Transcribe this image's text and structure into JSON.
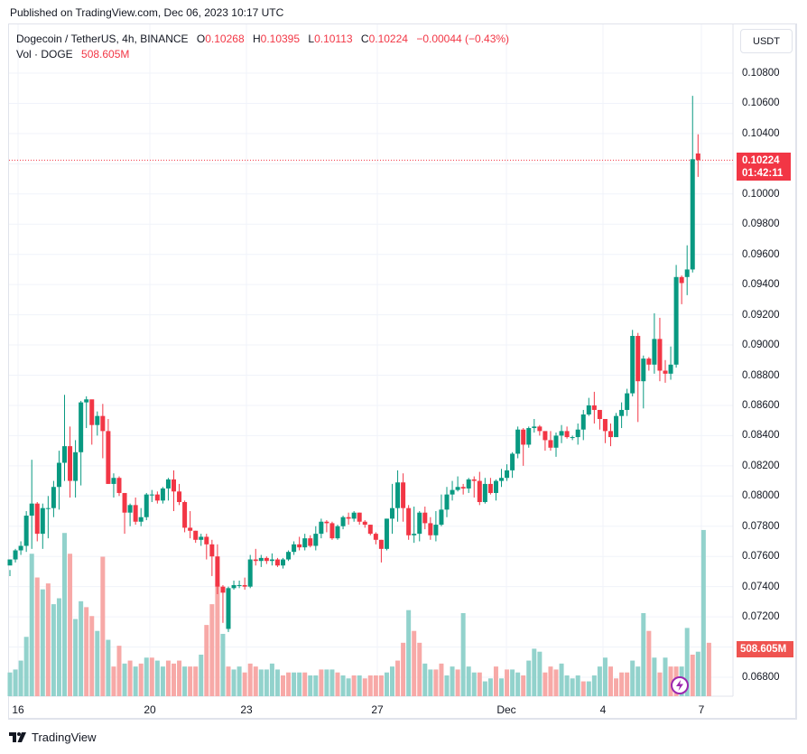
{
  "header": {
    "published": "Published on TradingView.com, Dec 06, 2023 10:17 UTC"
  },
  "legend": {
    "symbol": "Dogecoin / TetherUS, 4h, BINANCE",
    "o_label": "O",
    "o_value": "0.10268",
    "h_label": "H",
    "h_value": "0.10395",
    "l_label": "L",
    "l_value": "0.10113",
    "c_label": "C",
    "c_value": "0.10224",
    "change": "−0.00044 (−0.43%)",
    "vol_label": "Vol · DOGE",
    "vol_value": "508.605M"
  },
  "price_axis": {
    "unit_button": "USDT",
    "ticks": [
      "0.10800",
      "0.10600",
      "0.10400",
      "0.10000",
      "0.09800",
      "0.09600",
      "0.09400",
      "0.09200",
      "0.09000",
      "0.08800",
      "0.08600",
      "0.08400",
      "0.08200",
      "0.08000",
      "0.07800",
      "0.07600",
      "0.07400",
      "0.07200",
      "0.06800"
    ],
    "last_price": "0.10224",
    "countdown": "01:42:11",
    "volume_last": "508.605M"
  },
  "time_axis": {
    "ticks": [
      "16",
      "20",
      "23",
      "27",
      "Dec",
      "4",
      "7"
    ]
  },
  "footer": {
    "brand": "TradingView"
  },
  "colors": {
    "up": "#089981",
    "down": "#f23645",
    "vol_up": "#92d2cc",
    "vol_down": "#f7a9a7",
    "grid": "#f0f3fa",
    "accent_purple": "#9c27b0"
  },
  "chart_data": {
    "type": "candlestick",
    "title": "Dogecoin / TetherUS, 4h, BINANCE",
    "xlabel": "",
    "ylabel": "USDT",
    "ylim": [
      0.0675,
      0.1095
    ],
    "grid": true,
    "x_ticks": [
      "16",
      "20",
      "23",
      "27",
      "Dec",
      "4",
      "7"
    ],
    "y_ticks": [
      0.068,
      0.072,
      0.074,
      0.076,
      0.078,
      0.08,
      0.082,
      0.084,
      0.086,
      0.088,
      0.09,
      0.092,
      0.094,
      0.096,
      0.098,
      0.1,
      0.104,
      0.106,
      0.108
    ],
    "last": {
      "open": 0.10268,
      "high": 0.10395,
      "low": 0.10113,
      "close": 0.10224,
      "volume": "508.605M"
    },
    "candles": [
      [
        0.0754,
        0.0758,
        0.0751,
        0.0747
      ],
      [
        0.0758,
        0.0764,
        0.0765,
        0.0756
      ],
      [
        0.0764,
        0.0767,
        0.077,
        0.0761
      ],
      [
        0.0767,
        0.0787,
        0.079,
        0.0763
      ],
      [
        0.0787,
        0.0795,
        0.0824,
        0.0765
      ],
      [
        0.0795,
        0.0775,
        0.0796,
        0.077
      ],
      [
        0.0775,
        0.0792,
        0.0795,
        0.0765
      ],
      [
        0.0792,
        0.0792,
        0.08,
        0.0772
      ],
      [
        0.0792,
        0.0806,
        0.081,
        0.0786
      ],
      [
        0.0806,
        0.0822,
        0.083,
        0.0791
      ],
      [
        0.0822,
        0.0833,
        0.0867,
        0.081
      ],
      [
        0.0833,
        0.081,
        0.0846,
        0.0799
      ],
      [
        0.081,
        0.0829,
        0.0837,
        0.0799
      ],
      [
        0.0829,
        0.0862,
        0.0863,
        0.0807
      ],
      [
        0.0862,
        0.0864,
        0.0866,
        0.0845
      ],
      [
        0.0864,
        0.0847,
        0.0858,
        0.0834
      ],
      [
        0.0847,
        0.0853,
        0.0856,
        0.084
      ],
      [
        0.0853,
        0.0843,
        0.0861,
        0.0825
      ],
      [
        0.0843,
        0.0808,
        0.0851,
        0.0808
      ],
      [
        0.0808,
        0.0812,
        0.0815,
        0.0799
      ],
      [
        0.0812,
        0.0802,
        0.0813,
        0.08
      ],
      [
        0.0802,
        0.0789,
        0.0802,
        0.0775
      ],
      [
        0.0789,
        0.0794,
        0.0795,
        0.078
      ],
      [
        0.0794,
        0.0783,
        0.0799,
        0.0781
      ],
      [
        0.0783,
        0.0786,
        0.0792,
        0.078
      ],
      [
        0.0786,
        0.0801,
        0.0802,
        0.0784
      ],
      [
        0.0801,
        0.0801,
        0.0804,
        0.0796
      ],
      [
        0.0801,
        0.0797,
        0.0803,
        0.0795
      ],
      [
        0.0797,
        0.0805,
        0.0806,
        0.0795
      ],
      [
        0.0805,
        0.0811,
        0.0812,
        0.0797
      ],
      [
        0.0811,
        0.0803,
        0.0817,
        0.079
      ],
      [
        0.0803,
        0.0796,
        0.0808,
        0.0794
      ],
      [
        0.0796,
        0.0779,
        0.0797,
        0.0776
      ],
      [
        0.0779,
        0.0777,
        0.079,
        0.0772
      ],
      [
        0.0777,
        0.0771,
        0.0777,
        0.0769
      ],
      [
        0.0771,
        0.0773,
        0.0775,
        0.0767
      ],
      [
        0.0773,
        0.0768,
        0.0775,
        0.0758
      ],
      [
        0.0768,
        0.076,
        0.0771,
        0.0747
      ],
      [
        0.076,
        0.074,
        0.0768,
        0.0735
      ],
      [
        0.074,
        0.0736,
        0.0741,
        0.0716
      ],
      [
        0.0712,
        0.0739,
        0.074,
        0.071
      ],
      [
        0.0739,
        0.0741,
        0.0744,
        0.0738
      ],
      [
        0.0741,
        0.0741,
        0.0744,
        0.0739
      ],
      [
        0.0741,
        0.074,
        0.0746,
        0.0738
      ],
      [
        0.074,
        0.0758,
        0.0761,
        0.0739
      ],
      [
        0.0758,
        0.0757,
        0.0765,
        0.0754
      ],
      [
        0.0757,
        0.0759,
        0.0761,
        0.0753
      ],
      [
        0.0759,
        0.0757,
        0.076,
        0.0755
      ],
      [
        0.0757,
        0.0758,
        0.0762,
        0.0754
      ],
      [
        0.0758,
        0.0754,
        0.0759,
        0.0753
      ],
      [
        0.0754,
        0.0758,
        0.0759,
        0.0752
      ],
      [
        0.0758,
        0.0763,
        0.0764,
        0.0757
      ],
      [
        0.0763,
        0.0768,
        0.077,
        0.0761
      ],
      [
        0.0768,
        0.0766,
        0.0773,
        0.0764
      ],
      [
        0.0766,
        0.0772,
        0.0775,
        0.0764
      ],
      [
        0.0772,
        0.0767,
        0.0774,
        0.0766
      ],
      [
        0.0767,
        0.0775,
        0.078,
        0.0764
      ],
      [
        0.0775,
        0.0783,
        0.0785,
        0.0772
      ],
      [
        0.0783,
        0.0782,
        0.0784,
        0.0776
      ],
      [
        0.0782,
        0.0772,
        0.0783,
        0.0771
      ],
      [
        0.0772,
        0.078,
        0.0781,
        0.0771
      ],
      [
        0.078,
        0.0786,
        0.0787,
        0.0778
      ],
      [
        0.0786,
        0.0785,
        0.0789,
        0.0781
      ],
      [
        0.0785,
        0.0789,
        0.079,
        0.0783
      ],
      [
        0.0789,
        0.0783,
        0.0789,
        0.0781
      ],
      [
        0.0783,
        0.0781,
        0.0784,
        0.0779
      ],
      [
        0.0781,
        0.0775,
        0.0781,
        0.0774
      ],
      [
        0.0775,
        0.0771,
        0.0776,
        0.0768
      ],
      [
        0.0771,
        0.0765,
        0.0771,
        0.0756
      ],
      [
        0.0765,
        0.0785,
        0.0785,
        0.0764
      ],
      [
        0.0785,
        0.0792,
        0.0808,
        0.0775
      ],
      [
        0.0792,
        0.0809,
        0.0817,
        0.0783
      ],
      [
        0.0809,
        0.0792,
        0.0815,
        0.0783
      ],
      [
        0.0792,
        0.0774,
        0.0794,
        0.0771
      ],
      [
        0.0774,
        0.0775,
        0.0793,
        0.0769
      ],
      [
        0.0775,
        0.0789,
        0.079,
        0.077
      ],
      [
        0.0789,
        0.0782,
        0.0793,
        0.0778
      ],
      [
        0.0782,
        0.0774,
        0.0786,
        0.0771
      ],
      [
        0.0774,
        0.0781,
        0.079,
        0.077
      ],
      [
        0.0781,
        0.0791,
        0.0801,
        0.078
      ],
      [
        0.0791,
        0.0801,
        0.0806,
        0.0786
      ],
      [
        0.0801,
        0.0804,
        0.081,
        0.0797
      ],
      [
        0.0804,
        0.0806,
        0.0813,
        0.0803
      ],
      [
        0.0806,
        0.0805,
        0.0808,
        0.0801
      ],
      [
        0.0805,
        0.0811,
        0.0812,
        0.0802
      ],
      [
        0.0811,
        0.081,
        0.0813,
        0.0799
      ],
      [
        0.081,
        0.0796,
        0.0816,
        0.0794
      ],
      [
        0.0796,
        0.0808,
        0.0812,
        0.0795
      ],
      [
        0.0808,
        0.0802,
        0.0812,
        0.0801
      ],
      [
        0.0802,
        0.081,
        0.0811,
        0.0797
      ],
      [
        0.081,
        0.0812,
        0.0818,
        0.0806
      ],
      [
        0.0812,
        0.0817,
        0.0821,
        0.081
      ],
      [
        0.0817,
        0.0828,
        0.0829,
        0.0812
      ],
      [
        0.0828,
        0.0844,
        0.0846,
        0.0825
      ],
      [
        0.0844,
        0.0834,
        0.0845,
        0.082
      ],
      [
        0.0834,
        0.0845,
        0.0846,
        0.0832
      ],
      [
        0.0845,
        0.0846,
        0.0851,
        0.0842
      ],
      [
        0.0846,
        0.0843,
        0.0847,
        0.084
      ],
      [
        0.0843,
        0.0837,
        0.0841,
        0.083
      ],
      [
        0.0837,
        0.0832,
        0.0843,
        0.083
      ],
      [
        0.0832,
        0.084,
        0.0842,
        0.0826
      ],
      [
        0.084,
        0.0843,
        0.0847,
        0.0835
      ],
      [
        0.0843,
        0.0839,
        0.0846,
        0.0838
      ],
      [
        0.0839,
        0.0839,
        0.084,
        0.0837
      ],
      [
        0.0839,
        0.0844,
        0.0848,
        0.0834
      ],
      [
        0.0844,
        0.0854,
        0.0857,
        0.0837
      ],
      [
        0.0854,
        0.086,
        0.0865,
        0.0853
      ],
      [
        0.086,
        0.0857,
        0.0869,
        0.0848
      ],
      [
        0.0857,
        0.0851,
        0.0857,
        0.0844
      ],
      [
        0.0851,
        0.0843,
        0.0851,
        0.0835
      ],
      [
        0.0843,
        0.0839,
        0.0848,
        0.0833
      ],
      [
        0.0839,
        0.0853,
        0.0855,
        0.084
      ],
      [
        0.0853,
        0.0857,
        0.0862,
        0.0845
      ],
      [
        0.0857,
        0.0868,
        0.0871,
        0.0853
      ],
      [
        0.0868,
        0.0906,
        0.091,
        0.0866
      ],
      [
        0.0906,
        0.0876,
        0.0908,
        0.0849
      ],
      [
        0.0876,
        0.0891,
        0.0893,
        0.0858
      ],
      [
        0.0891,
        0.0887,
        0.0892,
        0.0883
      ],
      [
        0.0887,
        0.0904,
        0.0921,
        0.0881
      ],
      [
        0.0904,
        0.0883,
        0.0918,
        0.0876
      ],
      [
        0.0883,
        0.0881,
        0.089,
        0.0875
      ],
      [
        0.0881,
        0.0887,
        0.0899,
        0.0877
      ],
      [
        0.0887,
        0.0945,
        0.0953,
        0.0885
      ],
      [
        0.0945,
        0.0941,
        0.0946,
        0.0927
      ],
      [
        0.0945,
        0.095,
        0.0966,
        0.0933
      ],
      [
        0.095,
        0.1023,
        0.1065,
        0.0948
      ],
      [
        0.10268,
        0.10224,
        0.10395,
        0.10113
      ]
    ],
    "volume": [
      [
        0.08,
        1
      ],
      [
        0.09,
        1
      ],
      [
        0.12,
        1
      ],
      [
        0.2,
        1
      ],
      [
        0.48,
        1
      ],
      [
        0.4,
        0
      ],
      [
        0.36,
        1
      ],
      [
        0.38,
        0
      ],
      [
        0.31,
        1
      ],
      [
        0.33,
        1
      ],
      [
        0.55,
        1
      ],
      [
        0.48,
        0
      ],
      [
        0.26,
        1
      ],
      [
        0.32,
        1
      ],
      [
        0.3,
        0
      ],
      [
        0.27,
        0
      ],
      [
        0.22,
        1
      ],
      [
        0.47,
        0
      ],
      [
        0.19,
        1
      ],
      [
        0.1,
        0
      ],
      [
        0.17,
        0
      ],
      [
        0.11,
        1
      ],
      [
        0.12,
        0
      ],
      [
        0.1,
        1
      ],
      [
        0.11,
        0
      ],
      [
        0.13,
        1
      ],
      [
        0.13,
        0
      ],
      [
        0.12,
        1
      ],
      [
        0.1,
        1
      ],
      [
        0.12,
        0
      ],
      [
        0.11,
        0
      ],
      [
        0.12,
        0
      ],
      [
        0.1,
        1
      ],
      [
        0.1,
        0
      ],
      [
        0.1,
        0
      ],
      [
        0.14,
        1
      ],
      [
        0.24,
        0
      ],
      [
        0.31,
        0
      ],
      [
        0.38,
        0
      ],
      [
        0.21,
        1
      ],
      [
        0.1,
        0
      ],
      [
        0.09,
        1
      ],
      [
        0.1,
        1
      ],
      [
        0.08,
        0
      ],
      [
        0.11,
        0
      ],
      [
        0.1,
        0
      ],
      [
        0.09,
        1
      ],
      [
        0.09,
        1
      ],
      [
        0.11,
        1
      ],
      [
        0.09,
        1
      ],
      [
        0.07,
        0
      ],
      [
        0.08,
        0
      ],
      [
        0.08,
        1
      ],
      [
        0.08,
        1
      ],
      [
        0.08,
        0
      ],
      [
        0.07,
        1
      ],
      [
        0.07,
        1
      ],
      [
        0.09,
        0
      ],
      [
        0.09,
        1
      ],
      [
        0.09,
        1
      ],
      [
        0.08,
        0
      ],
      [
        0.07,
        1
      ],
      [
        0.06,
        1
      ],
      [
        0.07,
        0
      ],
      [
        0.07,
        1
      ],
      [
        0.06,
        0
      ],
      [
        0.07,
        0
      ],
      [
        0.07,
        0
      ],
      [
        0.07,
        0
      ],
      [
        0.08,
        1
      ],
      [
        0.1,
        1
      ],
      [
        0.12,
        0
      ],
      [
        0.18,
        0
      ],
      [
        0.29,
        1
      ],
      [
        0.22,
        0
      ],
      [
        0.18,
        0
      ],
      [
        0.11,
        1
      ],
      [
        0.09,
        1
      ],
      [
        0.09,
        0
      ],
      [
        0.11,
        0
      ],
      [
        0.07,
        1
      ],
      [
        0.1,
        1
      ],
      [
        0.09,
        0
      ],
      [
        0.28,
        1
      ],
      [
        0.1,
        1
      ],
      [
        0.08,
        1
      ],
      [
        0.08,
        0
      ],
      [
        0.05,
        1
      ],
      [
        0.06,
        1
      ],
      [
        0.1,
        0
      ],
      [
        0.06,
        1
      ],
      [
        0.09,
        0
      ],
      [
        0.09,
        1
      ],
      [
        0.08,
        1
      ],
      [
        0.07,
        0
      ],
      [
        0.12,
        1
      ],
      [
        0.16,
        1
      ],
      [
        0.15,
        1
      ],
      [
        0.08,
        0
      ],
      [
        0.1,
        0
      ],
      [
        0.09,
        0
      ],
      [
        0.11,
        1
      ],
      [
        0.07,
        1
      ],
      [
        0.06,
        1
      ],
      [
        0.07,
        1
      ],
      [
        0.05,
        0
      ],
      [
        0.05,
        1
      ],
      [
        0.07,
        1
      ],
      [
        0.1,
        1
      ],
      [
        0.13,
        1
      ],
      [
        0.1,
        0
      ],
      [
        0.06,
        0
      ],
      [
        0.08,
        0
      ],
      [
        0.08,
        0
      ],
      [
        0.12,
        1
      ],
      [
        0.1,
        1
      ],
      [
        0.28,
        1
      ],
      [
        0.22,
        0
      ],
      [
        0.13,
        1
      ],
      [
        0.08,
        0
      ],
      [
        0.13,
        1
      ],
      [
        0.1,
        0
      ],
      [
        0.1,
        0
      ],
      [
        0.1,
        1
      ],
      [
        0.23,
        1
      ],
      [
        0.14,
        0
      ],
      [
        0.15,
        1
      ],
      [
        0.56,
        1
      ],
      [
        0.18,
        0
      ]
    ]
  }
}
